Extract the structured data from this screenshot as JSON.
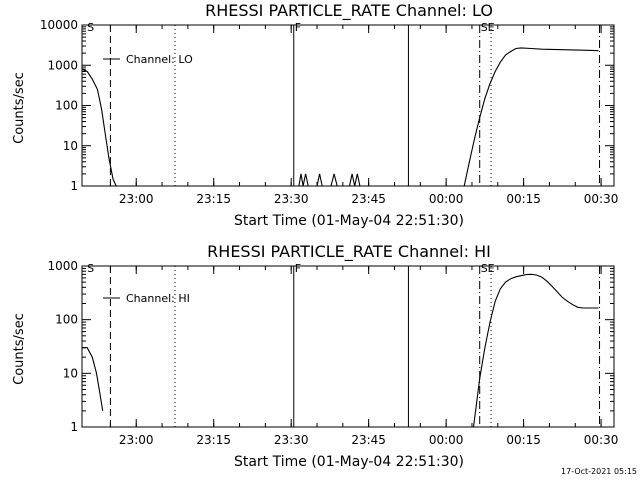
{
  "footer": {
    "timestamp": "17-Oct-2021 05:15"
  },
  "chart_data": [
    {
      "type": "line",
      "title": "RHESSI PARTICLE_RATE Channel: LO",
      "xlabel": "Start Time (01-May-04 22:51:30)",
      "ylabel": "Counts/sec",
      "yscale": "log",
      "xlim": [
        -2,
        101
      ],
      "ylim": [
        1,
        10000
      ],
      "x_ticks": [
        {
          "t": 8.5,
          "label": "23:00"
        },
        {
          "t": 23.5,
          "label": "23:15"
        },
        {
          "t": 38.5,
          "label": "23:30"
        },
        {
          "t": 53.5,
          "label": "23:45"
        },
        {
          "t": 68.5,
          "label": "00:00"
        },
        {
          "t": 83.5,
          "label": "00:15"
        },
        {
          "t": 98.5,
          "label": "00:30"
        }
      ],
      "y_ticks": [
        {
          "v": 1,
          "label": "1"
        },
        {
          "v": 10,
          "label": "10"
        },
        {
          "v": 100,
          "label": "100"
        },
        {
          "v": 1000,
          "label": "1000"
        },
        {
          "v": 10000,
          "label": "10000"
        }
      ],
      "legend": {
        "label": "Channel: LO",
        "placement": "top-left"
      },
      "markers": [
        {
          "t": -1.0,
          "style": "text",
          "label": "S"
        },
        {
          "t": 3.5,
          "style": "dashed",
          "label": ""
        },
        {
          "t": 16.0,
          "style": "dotted",
          "label": ""
        },
        {
          "t": 39.0,
          "style": "solid",
          "label": "F"
        },
        {
          "t": 61.2,
          "style": "solid",
          "label": ""
        },
        {
          "t": 75.0,
          "style": "dashdot",
          "label": "SE"
        },
        {
          "t": 77.2,
          "style": "dotted",
          "label": ""
        },
        {
          "t": 98.2,
          "style": "dashdot",
          "label": ""
        }
      ],
      "series": [
        {
          "segments": [
            [
              [
                -2,
                800
              ],
              [
                -1,
                700
              ],
              [
                0,
                450
              ],
              [
                1,
                250
              ],
              [
                1.8,
                80
              ],
              [
                2.5,
                20
              ],
              [
                3.2,
                5
              ],
              [
                4,
                1.5
              ],
              [
                4.6,
                1
              ]
            ],
            [
              [
                40,
                1
              ],
              [
                40.4,
                2
              ],
              [
                40.8,
                1
              ],
              [
                41.3,
                2
              ],
              [
                41.8,
                1
              ]
            ],
            [
              [
                43.5,
                1
              ],
              [
                44,
                2
              ],
              [
                44.5,
                1
              ]
            ],
            [
              [
                46.2,
                1
              ],
              [
                46.8,
                2
              ],
              [
                47.4,
                1
              ]
            ],
            [
              [
                49.8,
                1
              ],
              [
                50.3,
                2
              ],
              [
                50.8,
                1
              ],
              [
                51.3,
                2
              ],
              [
                51.8,
                1
              ]
            ],
            [
              [
                72,
                1
              ],
              [
                73,
                4
              ],
              [
                74,
                15
              ],
              [
                75,
                50
              ],
              [
                76,
                150
              ],
              [
                77,
                350
              ],
              [
                78,
                700
              ],
              [
                79,
                1200
              ],
              [
                80,
                1800
              ],
              [
                81,
                2200
              ],
              [
                82,
                2600
              ],
              [
                83,
                2700
              ],
              [
                85,
                2600
              ],
              [
                87,
                2500
              ],
              [
                90,
                2450
              ],
              [
                93,
                2400
              ],
              [
                96,
                2350
              ],
              [
                98,
                2300
              ]
            ]
          ]
        }
      ]
    },
    {
      "type": "line",
      "title": "RHESSI PARTICLE_RATE Channel: HI",
      "xlabel": "Start Time (01-May-04 22:51:30)",
      "ylabel": "Counts/sec",
      "yscale": "log",
      "xlim": [
        -2,
        101
      ],
      "ylim": [
        1,
        1000
      ],
      "x_ticks": [
        {
          "t": 8.5,
          "label": "23:00"
        },
        {
          "t": 23.5,
          "label": "23:15"
        },
        {
          "t": 38.5,
          "label": "23:30"
        },
        {
          "t": 53.5,
          "label": "23:45"
        },
        {
          "t": 68.5,
          "label": "00:00"
        },
        {
          "t": 83.5,
          "label": "00:15"
        },
        {
          "t": 98.5,
          "label": "00:30"
        }
      ],
      "y_ticks": [
        {
          "v": 1,
          "label": "1"
        },
        {
          "v": 10,
          "label": "10"
        },
        {
          "v": 100,
          "label": "100"
        },
        {
          "v": 1000,
          "label": "1000"
        }
      ],
      "legend": {
        "label": "Channel: HI",
        "placement": "top-left"
      },
      "markers": [
        {
          "t": -1.0,
          "style": "text",
          "label": "S"
        },
        {
          "t": 3.5,
          "style": "dashed",
          "label": ""
        },
        {
          "t": 16.0,
          "style": "dotted",
          "label": ""
        },
        {
          "t": 39.0,
          "style": "solid",
          "label": "F"
        },
        {
          "t": 61.2,
          "style": "solid",
          "label": ""
        },
        {
          "t": 75.0,
          "style": "dashdot",
          "label": "SE"
        },
        {
          "t": 77.2,
          "style": "dotted",
          "label": ""
        },
        {
          "t": 98.2,
          "style": "dashdot",
          "label": ""
        }
      ],
      "series": [
        {
          "segments": [
            [
              [
                -2,
                30
              ],
              [
                -1,
                30
              ],
              [
                0,
                20
              ],
              [
                0.8,
                10
              ],
              [
                1.5,
                4
              ],
              [
                2,
                2
              ]
            ],
            [
              [
                73.8,
                1
              ],
              [
                74.2,
                2
              ],
              [
                75,
                8
              ],
              [
                76,
                30
              ],
              [
                77,
                90
              ],
              [
                78,
                220
              ],
              [
                79,
                380
              ],
              [
                80,
                500
              ],
              [
                81,
                580
              ],
              [
                82,
                630
              ],
              [
                83,
                660
              ],
              [
                84,
                690
              ],
              [
                85,
                700
              ],
              [
                86,
                680
              ],
              [
                87,
                620
              ],
              [
                88,
                520
              ],
              [
                89,
                420
              ],
              [
                90,
                330
              ],
              [
                91,
                260
              ],
              [
                92,
                220
              ],
              [
                93,
                190
              ],
              [
                94,
                170
              ],
              [
                95,
                165
              ],
              [
                96,
                165
              ],
              [
                97,
                165
              ],
              [
                98,
                165
              ]
            ]
          ]
        }
      ]
    }
  ]
}
